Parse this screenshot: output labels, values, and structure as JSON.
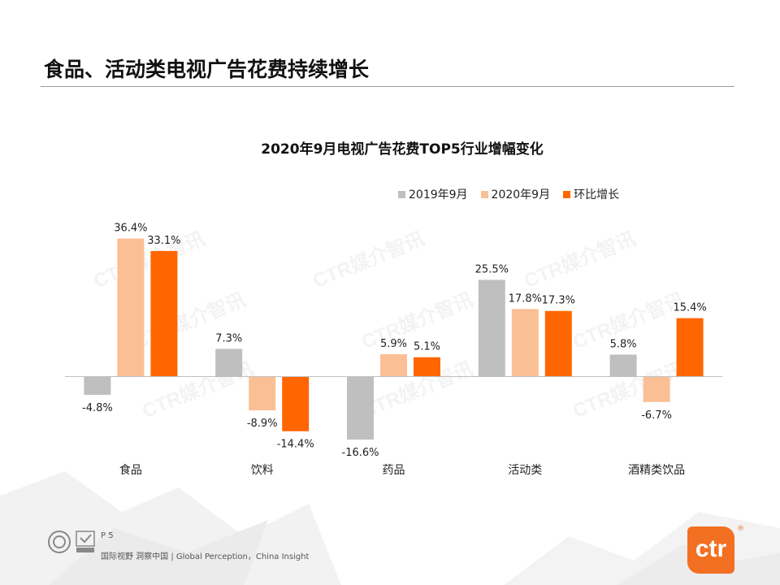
{
  "slide": {
    "title": "食品、活动类电视广告花费持续增长",
    "watermark": "CTR媒介智讯",
    "page_label": "P 5",
    "slogan": "国际视野  洞察中国 | Global Perception，China Insight",
    "logo_text": "ctr",
    "logo_mark": "®"
  },
  "colors": {
    "series_2019": "#bfbfbf",
    "series_2020": "#fbbf96",
    "series_growth": "#ff6600",
    "logo": "#f36f21"
  },
  "chart_data": {
    "type": "bar",
    "title": "2020年9月电视广告花费TOP5行业增幅变化",
    "categories": [
      "食品",
      "饮料",
      "药品",
      "活动类",
      "酒精类饮品"
    ],
    "series": [
      {
        "name": "2019年9月",
        "values": [
          -4.8,
          7.3,
          -16.6,
          25.5,
          5.8
        ],
        "labels": [
          "-4.8%",
          "7.3%",
          "-16.6%",
          "25.5%",
          "5.8%"
        ]
      },
      {
        "name": "2020年9月",
        "values": [
          36.4,
          -8.9,
          5.9,
          17.8,
          -6.7
        ],
        "labels": [
          "36.4%",
          "-8.9%",
          "5.9%",
          "17.8%",
          "-6.7%"
        ]
      },
      {
        "name": "环比增长",
        "values": [
          33.1,
          -14.4,
          5.1,
          17.3,
          15.4
        ],
        "labels": [
          "33.1%",
          "-14.4%",
          "5.1%",
          "17.3%",
          "15.4%"
        ]
      }
    ],
    "legend_position": "top-right",
    "grid": false,
    "ylim": [
      -16.6,
      36.4
    ]
  }
}
